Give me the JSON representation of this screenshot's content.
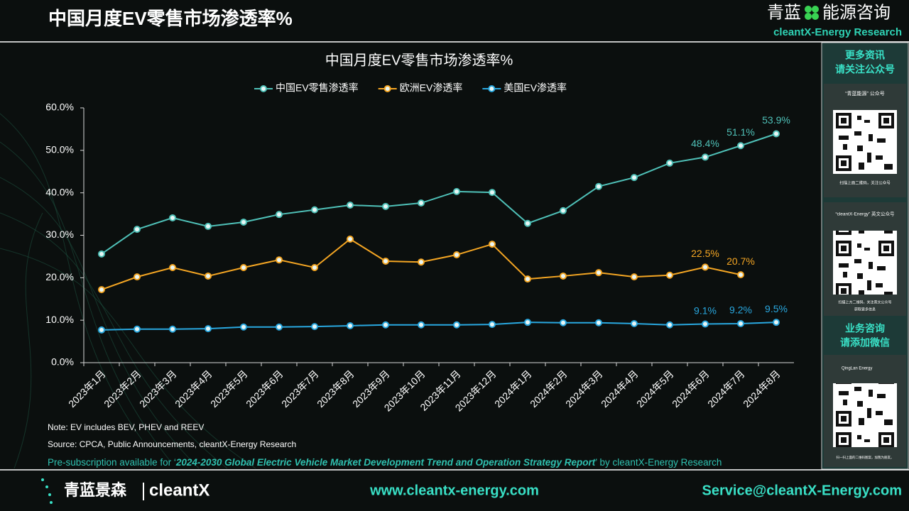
{
  "header": {
    "title": "中国月度EV零售市场渗透率%",
    "logo_cn_1": "青蓝",
    "logo_cn_2": "能源咨询",
    "logo_en": "cleantX-Energy Research"
  },
  "chart_data": {
    "type": "line",
    "title": "中国月度EV零售市场渗透率%",
    "categories": [
      "2023年1月",
      "2023年2月",
      "2023年3月",
      "2023年4月",
      "2023年5月",
      "2023年6月",
      "2023年7月",
      "2023年8月",
      "2023年9月",
      "2023年10月",
      "2023年11月",
      "2023年12月",
      "2024年1月",
      "2024年2月",
      "2024年3月",
      "2024年4月",
      "2024年5月",
      "2024年6月",
      "2024年7月",
      "2024年8月"
    ],
    "series": [
      {
        "name": "中国EV零售渗透率",
        "color": "#4fc1b8",
        "values": [
          25.6,
          31.4,
          34.1,
          32.1,
          33.1,
          34.9,
          36.0,
          37.1,
          36.8,
          37.6,
          40.3,
          40.1,
          32.8,
          35.8,
          41.5,
          43.6,
          47.0,
          48.4,
          51.1,
          53.9
        ],
        "value_labels": [
          null,
          null,
          null,
          null,
          null,
          null,
          null,
          null,
          null,
          null,
          null,
          null,
          null,
          null,
          null,
          null,
          null,
          "48.4%",
          "51.1%",
          "53.9%"
        ]
      },
      {
        "name": "欧洲EV渗透率",
        "color": "#f5a623",
        "values": [
          17.2,
          20.2,
          22.4,
          20.4,
          22.4,
          24.2,
          22.4,
          29.1,
          23.9,
          23.7,
          25.4,
          27.9,
          19.7,
          20.4,
          21.2,
          20.2,
          20.6,
          22.5,
          20.7,
          null
        ],
        "value_labels": [
          null,
          null,
          null,
          null,
          null,
          null,
          null,
          null,
          null,
          null,
          null,
          null,
          null,
          null,
          null,
          null,
          null,
          "22.5%",
          "20.7%",
          null
        ]
      },
      {
        "name": "美国EV渗透率",
        "color": "#29a8e0",
        "values": [
          7.7,
          7.9,
          7.9,
          8.0,
          8.4,
          8.4,
          8.5,
          8.7,
          8.9,
          8.9,
          8.9,
          9.0,
          9.5,
          9.4,
          9.4,
          9.2,
          8.9,
          9.1,
          9.2,
          9.5
        ],
        "value_labels": [
          null,
          null,
          null,
          null,
          null,
          null,
          null,
          null,
          null,
          null,
          null,
          null,
          null,
          null,
          null,
          null,
          null,
          "9.1%",
          "9.2%",
          "9.5%"
        ]
      }
    ],
    "ylim": [
      0,
      60
    ],
    "yticks": [
      {
        "value": 0,
        "label": "0.0%"
      },
      {
        "value": 10,
        "label": "10.0%"
      },
      {
        "value": 20,
        "label": "20.0%"
      },
      {
        "value": 30,
        "label": "30.0%"
      },
      {
        "value": 40,
        "label": "40.0%"
      },
      {
        "value": 50,
        "label": "50.0%"
      },
      {
        "value": 60,
        "label": "60.0%"
      }
    ],
    "grid": false,
    "legend": "top"
  },
  "notes": {
    "note": "Note: EV  includes BEV, PHEV and REEV",
    "source": "Source: CPCA,  Public Announcements,  cleantX-Energy  Research",
    "presub_1": "Pre-subscription available for ‘",
    "presub_2": "2024-2030  Global Electric Vehicle Market Development Trend and Operation Strategy Report",
    "presub_3": "’ by cleantX-Energy Research"
  },
  "sidebar": {
    "top_1": "更多资讯",
    "top_2": "请关注公众号",
    "qr1_title": "“青蓝能源” 公众号",
    "qr1_caption": "扫描上面二维码，关注公众号",
    "qr2_title": "“cleantX-Energy” 英文公众号",
    "qr2_caption": "扫描上方二维码，关注英文公众号",
    "qr2_caption_2": "获取更多信息",
    "mid_1": "业务咨询",
    "mid_2": "请添加微信",
    "qr3_title": "QingLan Energy",
    "qr3_caption": "扫一扫上面的二维码图案，加我为朋友。"
  },
  "footer": {
    "logo_cn": "青蓝景森",
    "logo_en": "cleantX",
    "website": "www.cleantx-energy.com",
    "email": "Service@cleantX-Energy.com"
  }
}
